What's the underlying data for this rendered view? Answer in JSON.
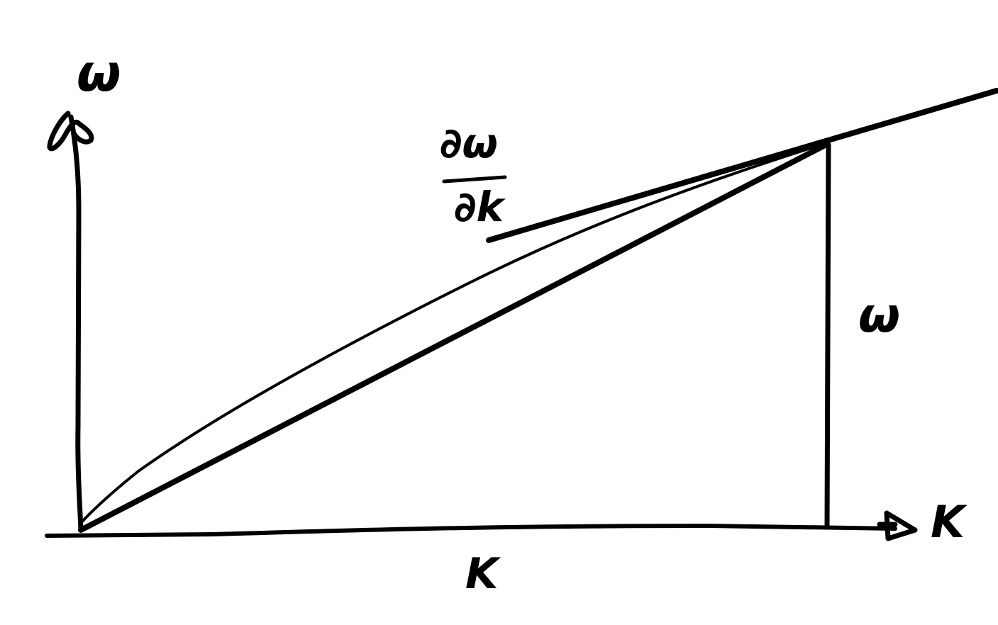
{
  "diagram": {
    "ink_color": "#000000",
    "background_color": "#ffffff",
    "labels": {
      "y_axis": "ω",
      "x_axis_end": "K",
      "x_segment": "K",
      "vertical_segment": "ω",
      "derivative_numerator": "∂ω",
      "derivative_denominator": "∂k"
    }
  }
}
